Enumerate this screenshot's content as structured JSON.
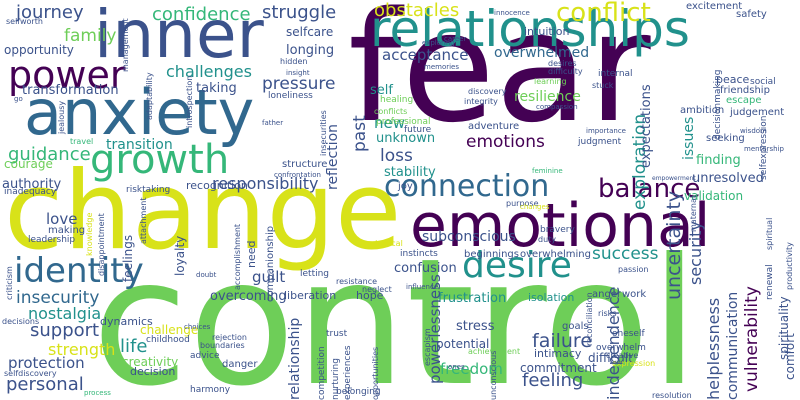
{
  "colors": {
    "purple": "#440154",
    "indigo": "#3b528b",
    "blue": "#31688e",
    "teal": "#21918c",
    "green": "#35b779",
    "lime": "#6ece58",
    "yellow": "#d8e219"
  },
  "words": {
    "fear": "fear",
    "control": "control",
    "change": "change",
    "emotional": "emotional",
    "anxiety": "anxiety",
    "inner": "inner",
    "relationships": "relationships",
    "power": "power",
    "growth": "growth",
    "connection": "connection",
    "desire": "desire",
    "identity": "identity",
    "balance": "balance",
    "conflict": "conflict",
    "obstacles": "obstacles",
    "confidence": "confidence",
    "struggle": "struggle",
    "journey": "journey",
    "family": "family",
    "challenges": "challenges",
    "pressure": "pressure",
    "acceptance": "acceptance",
    "overwhelmed": "overwhelmed",
    "transformation": "transformation",
    "guidance": "guidance",
    "transition": "transition",
    "responsibility": "responsibility",
    "emotions": "emotions",
    "loss": "loss",
    "insecurity": "insecurity",
    "nostalgia": "nostalgia",
    "support": "support",
    "strength": "strength",
    "success": "success",
    "failure": "failure",
    "freedom": "freedom",
    "feeling": "feeling",
    "personal": "personal",
    "protection": "protection",
    "life": "life",
    "resilience": "resilience",
    "uncertainty": "uncertainty",
    "exploration": "exploration",
    "independence": "independence",
    "security": "security",
    "vulnerability": "vulnerability",
    "powerlessness": "powerlessness",
    "relationship": "relationship",
    "communication": "communication",
    "helplessness": "helplessness",
    "stability": "stability",
    "unknown": "unknown",
    "subconscious": "subconscious",
    "unresolved": "unresolved",
    "validation": "validation",
    "finding": "finding",
    "authority": "authority",
    "courage": "courage",
    "love": "love",
    "guilt": "guilt",
    "overcoming": "overcoming",
    "confusion": "confusion",
    "frustration": "frustration",
    "stress": "stress",
    "potential": "potential",
    "commitment": "commitment",
    "self": "self",
    "past": "past",
    "new": "new",
    "reflection": "reflection",
    "taking": "taking",
    "longing": "longing",
    "selfcare": "selfcare",
    "opportunity": "opportunity",
    "recognition": "recognition",
    "dynamics": "dynamics",
    "creativity": "creativity",
    "decision": "decision",
    "challenge": "challenge",
    "liberation": "liberation",
    "hope": "hope",
    "isolation": "isolation",
    "anger": "anger",
    "work": "work",
    "intimacy": "intimacy",
    "difficult": "difficult",
    "goals": "goals",
    "comfort": "comfort",
    "spirituality": "spirituality",
    "expectations": "expectations",
    "issues": "issues",
    "friendship": "friendship",
    "escape": "escape",
    "judgement": "judgement",
    "seeking": "seeking",
    "ambition": "ambition",
    "peace": "peace",
    "intuition": "intuition",
    "excitement": "excitement",
    "safety": "safety",
    "social": "social",
    "internal": "internal",
    "desires": "desires",
    "difficulty": "difficulty",
    "learning": "learning",
    "discovery": "discovery",
    "integrity": "integrity",
    "adventure": "adventure",
    "future": "future",
    "professional": "professional",
    "judgment": "judgment",
    "importance": "importance",
    "stuck": "stuck",
    "healing": "healing",
    "conflicts": "conflicts",
    "insecurities": "insecurities",
    "structure": "structure",
    "companionship": "companionship",
    "need": "need",
    "letting": "letting",
    "instincts": "instincts",
    "beginnings": "beginnings",
    "overwhelming": "overwhelming",
    "bravery": "bravery",
    "duty": "duty",
    "purpose": "purpose",
    "passion": "passion",
    "loyalty": "loyalty",
    "feelings": "feelings",
    "making": "making",
    "leadership": "leadership",
    "risktaking": "risktaking",
    "inadequacy": "inadequacy",
    "selfdiscovery": "selfdiscovery",
    "decisions": "decisions",
    "harmony": "harmony",
    "advice": "advice",
    "danger": "danger",
    "rejection": "rejection",
    "boundaries": "boundaries",
    "childhood": "childhood",
    "trust": "trust",
    "competition": "competition",
    "experiences": "experiences",
    "belonging": "belonging",
    "opportunities": "opportunities",
    "unconscious": "unconscious",
    "resolution": "resolution",
    "creative": "creative",
    "expression": "expression",
    "overwhelm": "overwhelm",
    "oneself": "oneself",
    "achievement": "achievement",
    "risks": "risks",
    "resistance": "resistance",
    "neglect": "neglect",
    "influence": "influence",
    "renewal": "renewal",
    "productivity": "productivity",
    "selfworth": "selfworth",
    "management": "management",
    "adaptability": "adaptability",
    "introspection": "introspection",
    "insight": "insight",
    "hidden": "hidden",
    "loneliness": "loneliness",
    "exploring": "exploring",
    "memories": "memories",
    "career": "career",
    "innocence": "innocence",
    "compassion": "compassion",
    "decisionmaking": "decisionmaking",
    "selfexpression": "selfexpression",
    "mentorship": "mentorship",
    "wisdom": "wisdom",
    "maternal": "maternal",
    "empowerment": "empowerment",
    "feminine": "feminine",
    "father": "father",
    "confrontation": "confrontation",
    "travel": "travel",
    "jealousy": "jealousy",
    "attachment": "attachment",
    "knowledge": "knowledge",
    "disappointment": "disappointment",
    "accomplishment": "accomplishment",
    "physical": "physical",
    "spiritual": "spiritual",
    "criticism": "criticism",
    "choices": "choices",
    "doubt": "doubt",
    "joy": "joy",
    "process": "process",
    "nurturing": "nurturing",
    "escapism": "escapism",
    "ones": "ones",
    "changes": "changes",
    "go": "go",
    "reconciliation": "reconciliation"
  }
}
